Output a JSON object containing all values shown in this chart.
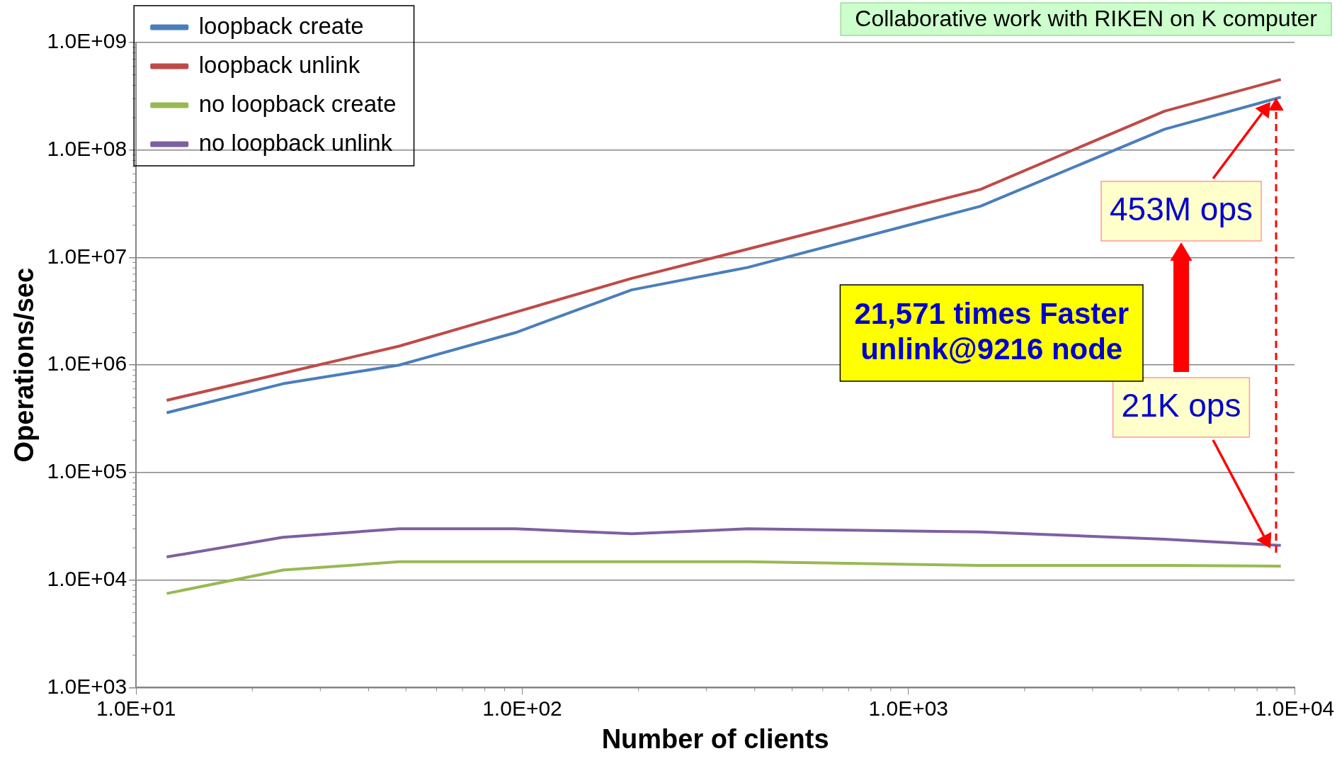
{
  "chart_data": {
    "type": "line",
    "xlabel": "Number of clients",
    "ylabel": "Operations/sec",
    "log": "xy",
    "grid": "y",
    "legend": "top left",
    "marker": "none",
    "line_style": "solid",
    "x": [
      12,
      24,
      48,
      96,
      192,
      384,
      1536,
      4608,
      9216
    ],
    "xlim": [
      10,
      10000
    ],
    "xticks": [
      {
        "value": 10,
        "label": "1.0E+01"
      },
      {
        "value": 100,
        "label": "1.0E+02"
      },
      {
        "value": 1000,
        "label": "1.0E+03"
      },
      {
        "value": 10000,
        "label": "1.0E+04"
      }
    ],
    "ylim": [
      1000,
      1000000000
    ],
    "yticks": [
      {
        "value": 1000,
        "label": "1.0E+03"
      },
      {
        "value": 10000,
        "label": "1.0E+04"
      },
      {
        "value": 100000,
        "label": "1.0E+05"
      },
      {
        "value": 1000000,
        "label": "1.0E+06"
      },
      {
        "value": 10000000,
        "label": "1.0E+07"
      },
      {
        "value": 100000000,
        "label": "1.0E+08"
      },
      {
        "value": 1000000000,
        "label": "1.0E+09"
      }
    ],
    "series": [
      {
        "name": "loopback create",
        "color": "#4a7ebb",
        "values": [
          360000,
          670000,
          1000000,
          2000000,
          5000000,
          8100000,
          30000000,
          156000000,
          310000000
        ]
      },
      {
        "name": "loopback unlink",
        "color": "#be4b48",
        "values": [
          470000,
          840000,
          1500000,
          3100000,
          6400000,
          12000000,
          43000000,
          230000000,
          453000000
        ]
      },
      {
        "name": "no loopback create",
        "color": "#98b954",
        "values": [
          7500,
          12400,
          14800,
          14800,
          14800,
          14800,
          13700,
          13700,
          13500
        ]
      },
      {
        "name": "no loopback unlink",
        "color": "#7d60a0",
        "values": [
          16400,
          25000,
          30000,
          30000,
          27000,
          30000,
          28000,
          24000,
          21000
        ]
      }
    ],
    "annotations": [
      "453M ops",
      "21K ops",
      "21,571 times Faster\nunlink@9216 node",
      "Collaborative work with RIKEN on K computer"
    ]
  }
}
